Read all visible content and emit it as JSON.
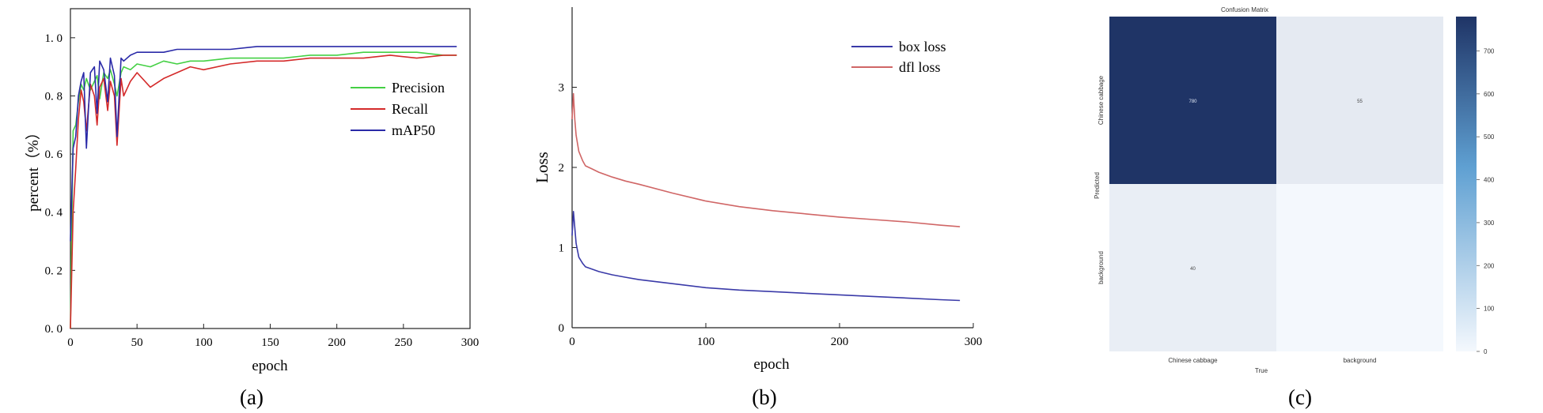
{
  "chart_data": [
    {
      "type": "line",
      "panel_label": "(a)",
      "xlabel": "epoch",
      "ylabel": "percent（%）",
      "xlim": [
        0,
        300
      ],
      "ylim": [
        0,
        1.1
      ],
      "xticks": [
        0,
        50,
        100,
        150,
        200,
        250,
        300
      ],
      "yticks": [
        0.0,
        0.2,
        0.4,
        0.6,
        0.8,
        1.0
      ],
      "xtick_labels": [
        "0",
        "50",
        "100",
        "150",
        "200",
        "250",
        "300"
      ],
      "ytick_labels": [
        "0. 0",
        "0. 2",
        "0. 4",
        "0. 6",
        "0. 8",
        "1. 0"
      ],
      "legend_position": "center-right",
      "colors": {
        "Precision": "#44d044",
        "Recall": "#d42a2a",
        "mAP50": "#2a2aa8"
      },
      "series": [
        {
          "name": "Precision",
          "x": [
            0,
            2,
            4,
            6,
            8,
            10,
            12,
            15,
            18,
            20,
            22,
            25,
            28,
            30,
            33,
            35,
            38,
            40,
            45,
            50,
            60,
            70,
            80,
            90,
            100,
            120,
            140,
            160,
            180,
            200,
            220,
            240,
            260,
            280,
            290
          ],
          "values": [
            0.0,
            0.68,
            0.7,
            0.78,
            0.84,
            0.82,
            0.86,
            0.82,
            0.85,
            0.87,
            0.79,
            0.88,
            0.86,
            0.89,
            0.84,
            0.8,
            0.88,
            0.9,
            0.89,
            0.91,
            0.9,
            0.92,
            0.91,
            0.92,
            0.92,
            0.93,
            0.93,
            0.93,
            0.94,
            0.94,
            0.95,
            0.95,
            0.95,
            0.94,
            0.94
          ]
        },
        {
          "name": "Recall",
          "x": [
            0,
            2,
            4,
            6,
            8,
            10,
            12,
            15,
            18,
            20,
            22,
            25,
            28,
            30,
            33,
            35,
            38,
            40,
            45,
            50,
            60,
            70,
            80,
            90,
            100,
            120,
            140,
            160,
            180,
            200,
            220,
            240,
            260,
            280,
            290
          ],
          "values": [
            0.0,
            0.4,
            0.55,
            0.72,
            0.82,
            0.78,
            0.68,
            0.84,
            0.8,
            0.7,
            0.83,
            0.86,
            0.75,
            0.85,
            0.8,
            0.63,
            0.86,
            0.8,
            0.85,
            0.88,
            0.83,
            0.86,
            0.88,
            0.9,
            0.89,
            0.91,
            0.92,
            0.92,
            0.93,
            0.93,
            0.93,
            0.94,
            0.93,
            0.94,
            0.94
          ]
        },
        {
          "name": "mAP50",
          "x": [
            0,
            2,
            4,
            6,
            8,
            10,
            12,
            15,
            18,
            20,
            22,
            25,
            28,
            30,
            33,
            35,
            38,
            40,
            45,
            50,
            60,
            70,
            80,
            90,
            100,
            120,
            140,
            160,
            180,
            200,
            220,
            240,
            260,
            280,
            290
          ],
          "values": [
            0.3,
            0.62,
            0.66,
            0.8,
            0.85,
            0.88,
            0.62,
            0.88,
            0.9,
            0.74,
            0.92,
            0.89,
            0.78,
            0.93,
            0.87,
            0.66,
            0.93,
            0.92,
            0.94,
            0.95,
            0.95,
            0.95,
            0.96,
            0.96,
            0.96,
            0.96,
            0.97,
            0.97,
            0.97,
            0.97,
            0.97,
            0.97,
            0.97,
            0.97,
            0.97
          ]
        }
      ]
    },
    {
      "type": "line",
      "panel_label": "(b)",
      "xlabel": "epoch",
      "ylabel": "Loss",
      "xlim": [
        0,
        300
      ],
      "ylim": [
        0,
        4
      ],
      "xticks": [
        0,
        100,
        200,
        300
      ],
      "yticks": [
        0,
        1,
        2,
        3
      ],
      "xtick_labels": [
        "0",
        "100",
        "200",
        "300"
      ],
      "ytick_labels": [
        "0",
        "1",
        "2",
        "3"
      ],
      "legend_position": "top-right",
      "colors": {
        "box loss": "#3a3aa8",
        "dfl loss": "#d06666"
      },
      "series": [
        {
          "name": "box loss",
          "x": [
            0,
            1,
            2,
            3,
            5,
            8,
            10,
            15,
            20,
            30,
            40,
            50,
            75,
            100,
            125,
            150,
            175,
            200,
            225,
            250,
            275,
            290
          ],
          "values": [
            1.15,
            1.45,
            1.25,
            1.05,
            0.88,
            0.8,
            0.76,
            0.73,
            0.7,
            0.66,
            0.63,
            0.6,
            0.55,
            0.5,
            0.47,
            0.45,
            0.43,
            0.41,
            0.39,
            0.37,
            0.35,
            0.34
          ]
        },
        {
          "name": "dfl loss",
          "x": [
            0,
            1,
            2,
            3,
            5,
            8,
            10,
            15,
            20,
            30,
            40,
            50,
            75,
            100,
            125,
            150,
            175,
            200,
            225,
            250,
            275,
            290
          ],
          "values": [
            2.6,
            2.92,
            2.6,
            2.4,
            2.2,
            2.08,
            2.02,
            1.98,
            1.94,
            1.88,
            1.83,
            1.79,
            1.68,
            1.58,
            1.51,
            1.46,
            1.42,
            1.38,
            1.35,
            1.32,
            1.28,
            1.26
          ]
        }
      ]
    },
    {
      "type": "heatmap",
      "panel_label": "(c)",
      "title": "Confusion Matrix",
      "xlabel": "True",
      "ylabel": "Predicted",
      "categories": [
        "Chinese cabbage",
        "background"
      ],
      "values": [
        [
          780,
          55
        ],
        [
          40,
          0
        ]
      ],
      "cell_labels": [
        [
          "780",
          "55"
        ],
        [
          "40",
          ""
        ]
      ],
      "colorbar_ticks": [
        0,
        100,
        200,
        300,
        400,
        500,
        600,
        700
      ],
      "colorbar_labels": [
        "0",
        "100",
        "200",
        "300",
        "400",
        "500",
        "600",
        "700"
      ],
      "vmax": 780,
      "colors": {
        "low": "#f4f8fd",
        "high": "#1f3466"
      }
    }
  ]
}
